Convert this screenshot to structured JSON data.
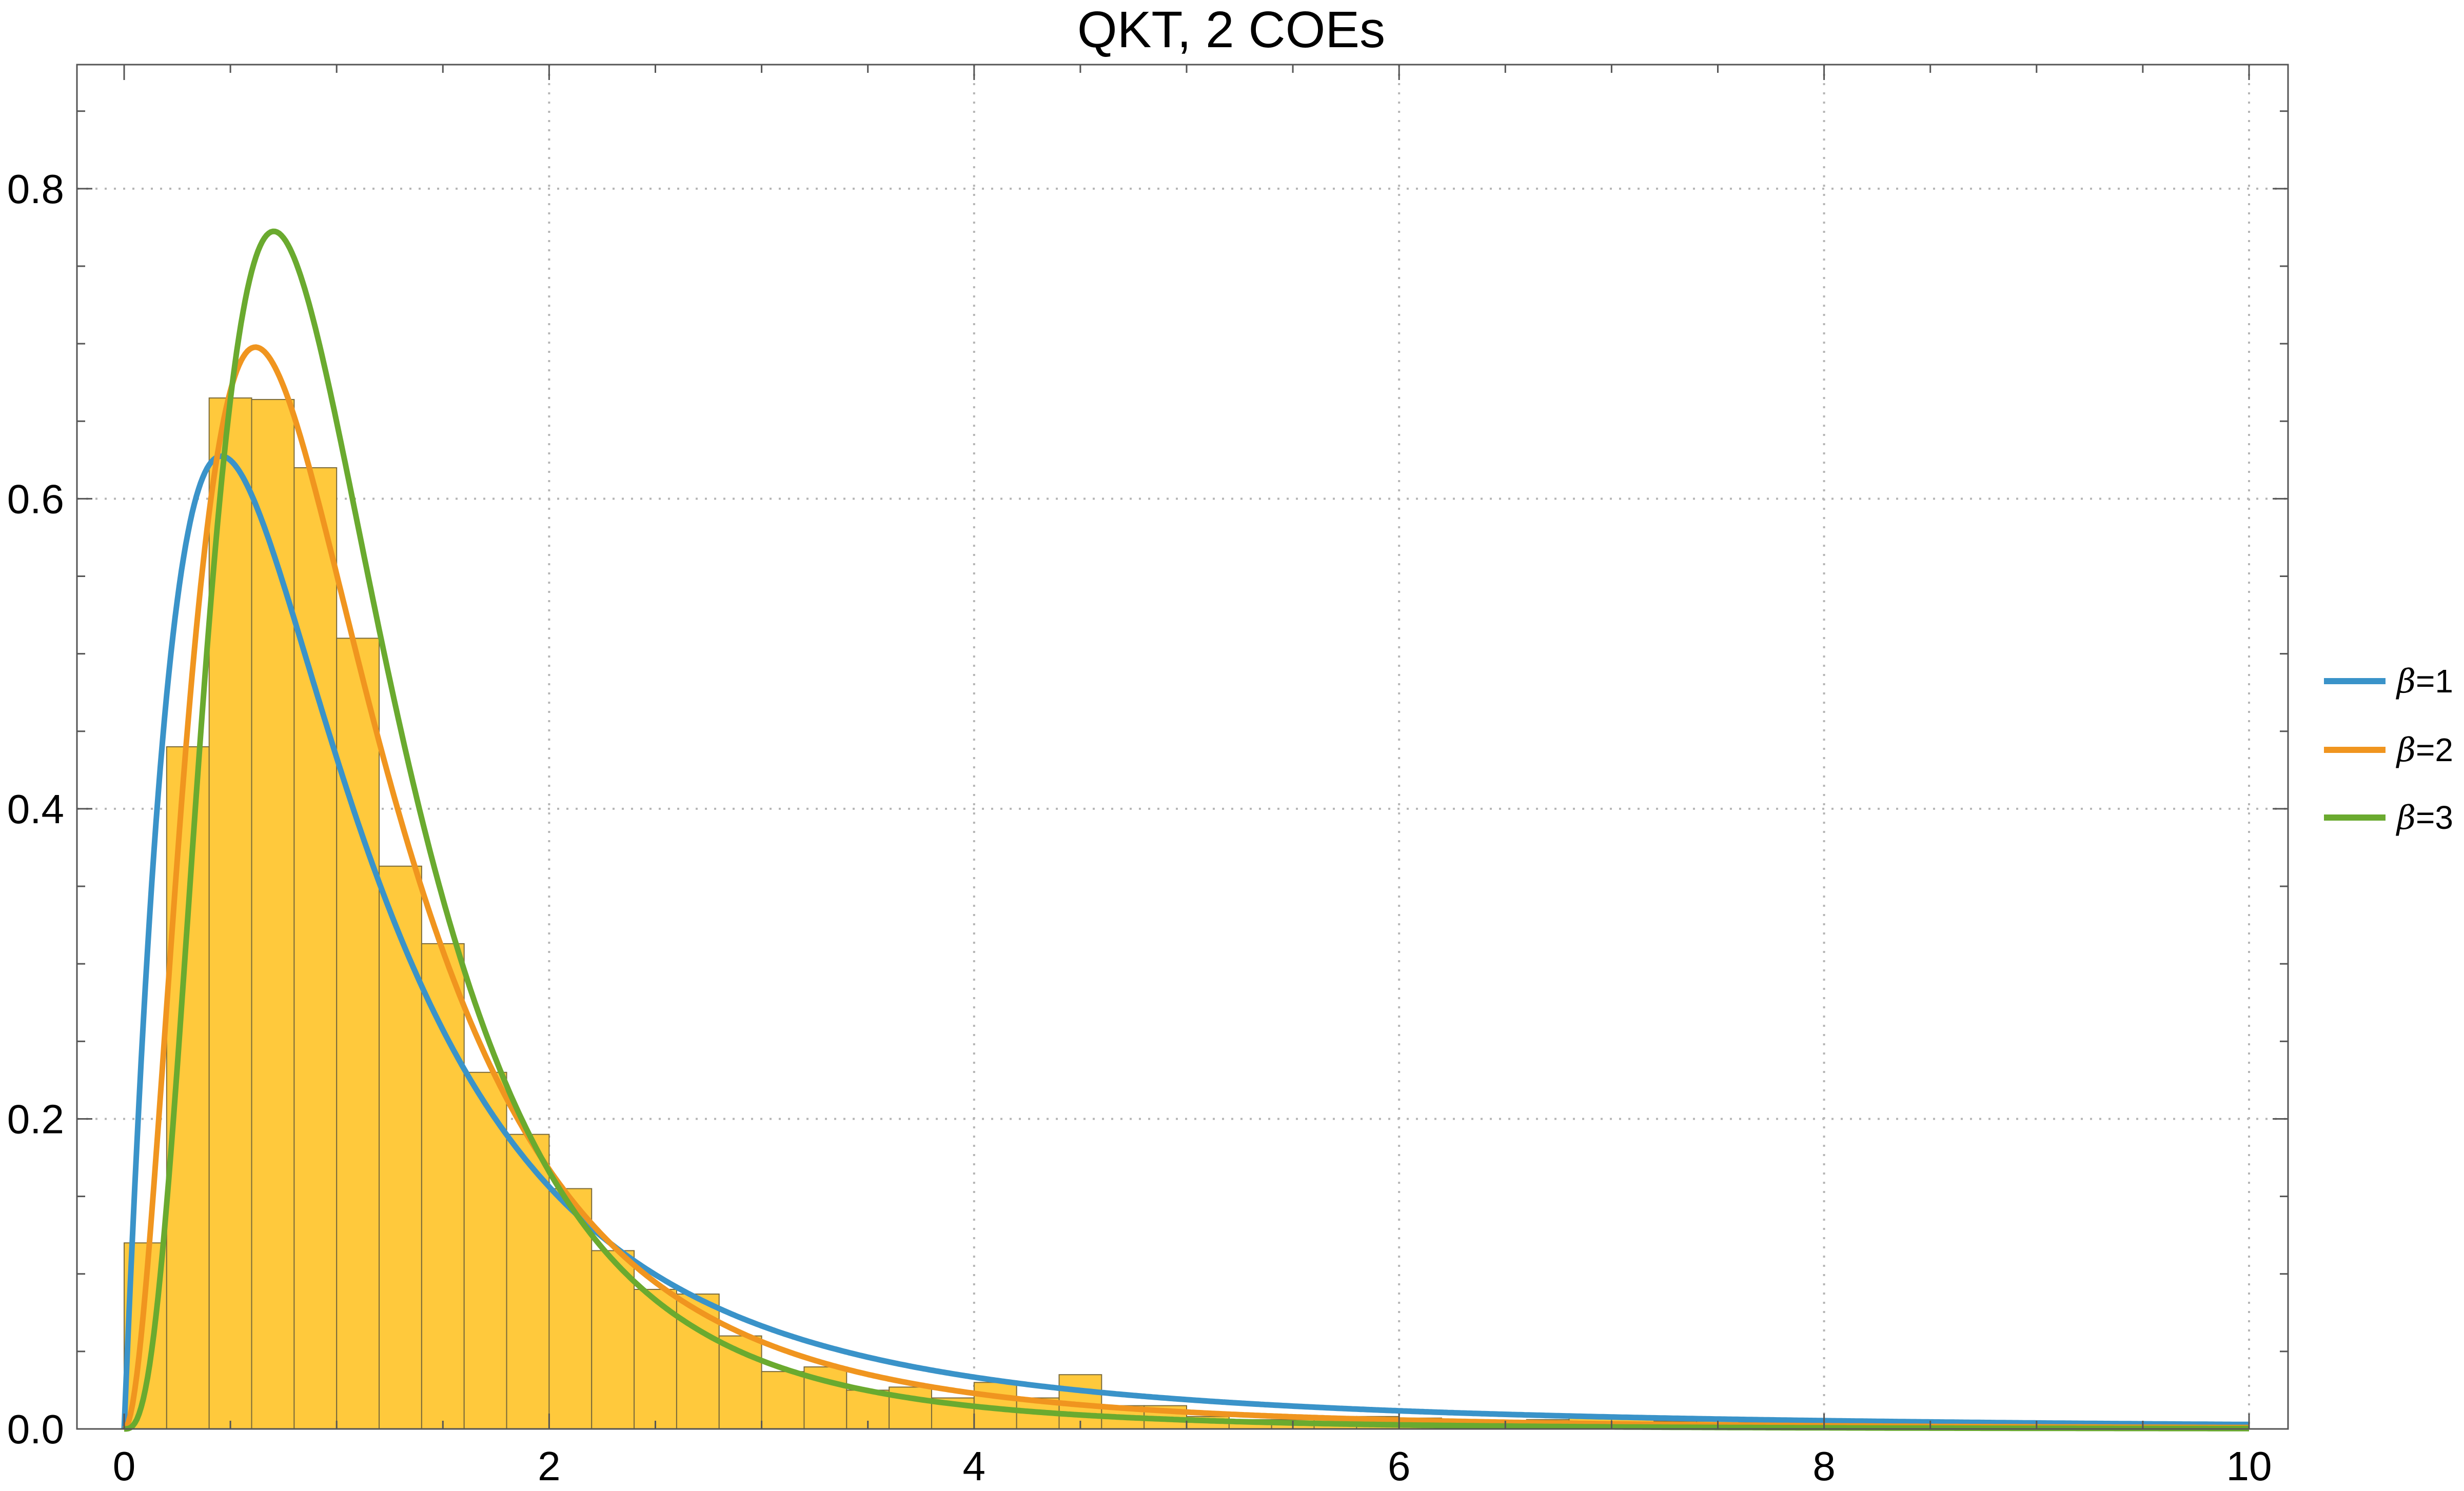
{
  "chart_data": {
    "type": "bar",
    "title": "QKT, 2 COEs",
    "xlabel": "",
    "ylabel": "",
    "xlim": [
      0,
      10
    ],
    "ylim": [
      0,
      0.88
    ],
    "grid": true,
    "legend_position": "right",
    "x_ticks": [
      0,
      2,
      4,
      6,
      8,
      10
    ],
    "x_tick_labels": [
      "0",
      "2",
      "4",
      "6",
      "8",
      "10"
    ],
    "y_ticks": [
      0.0,
      0.2,
      0.4,
      0.6,
      0.8
    ],
    "y_tick_labels": [
      "0.0",
      "0.2",
      "0.4",
      "0.6",
      "0.8"
    ],
    "histogram": {
      "bin_width": 0.2,
      "bin_starts": [
        0.0,
        0.2,
        0.4,
        0.6,
        0.8,
        1.0,
        1.2,
        1.4,
        1.6,
        1.8,
        2.0,
        2.2,
        2.4,
        2.6,
        2.8,
        3.0,
        3.2,
        3.4,
        3.6,
        3.8,
        4.0,
        4.2,
        4.4,
        4.6,
        4.8,
        5.0,
        5.2,
        5.4,
        5.6,
        5.8,
        6.0,
        6.2,
        6.4,
        6.6,
        6.8,
        7.0,
        7.2,
        7.4,
        7.6,
        7.8,
        8.0,
        8.2,
        8.4,
        8.6,
        8.8,
        9.0,
        9.2,
        9.4,
        9.6,
        9.8
      ],
      "values": [
        0.12,
        0.44,
        0.665,
        0.664,
        0.62,
        0.51,
        0.363,
        0.313,
        0.23,
        0.19,
        0.155,
        0.115,
        0.09,
        0.087,
        0.06,
        0.037,
        0.04,
        0.025,
        0.027,
        0.02,
        0.03,
        0.02,
        0.035,
        0.015,
        0.015,
        0.008,
        0.006,
        0.006,
        0.008,
        0.008,
        0.007,
        0.006,
        0.005,
        0.006,
        0.007,
        0.008,
        0.005,
        0.005,
        0.004,
        0.005,
        0.006,
        0.005,
        0.004,
        0.003,
        0.004,
        0.003,
        0.003,
        0.002,
        0.002,
        0.002
      ],
      "color": "#ffc93c",
      "edge_color": "#7a6a3a"
    },
    "series": [
      {
        "name": "β=1",
        "beta": 1,
        "color": "#3a93c9"
      },
      {
        "name": "β=2",
        "beta": 2,
        "color": "#f0951f"
      },
      {
        "name": "β=3",
        "beta": 3,
        "color": "#6aaa2f"
      }
    ],
    "legend_labels": [
      {
        "prefix": "β",
        "suffix": "=1"
      },
      {
        "prefix": "β",
        "suffix": "=2"
      },
      {
        "prefix": "β",
        "suffix": "=3"
      }
    ]
  }
}
